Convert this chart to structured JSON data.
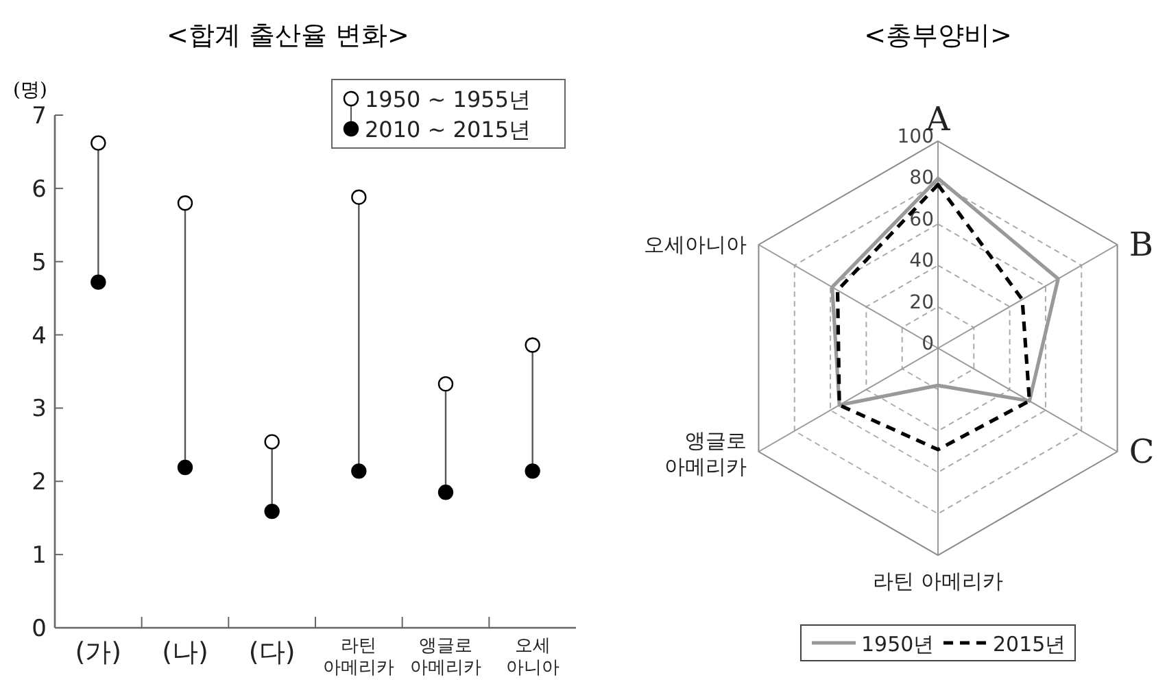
{
  "chart_data": [
    {
      "type": "scatter",
      "title": "<합계 출산율 변화>",
      "ylabel": "(명)",
      "categories": [
        "(가)",
        "(나)",
        "(다)",
        "라틴\n아메리카",
        "앵글로\n아메리카",
        "오세\n아니아"
      ],
      "series": [
        {
          "name": "1950 ~ 1955년",
          "color": "#ffffff",
          "values": [
            6.62,
            5.8,
            2.54,
            5.88,
            3.33,
            3.86
          ]
        },
        {
          "name": "2010 ~ 2015년",
          "color": "#000000",
          "values": [
            4.72,
            2.19,
            1.59,
            2.14,
            1.85,
            2.14
          ]
        }
      ],
      "ylim": [
        0,
        7
      ],
      "yticks": [
        0,
        1,
        2,
        3,
        4,
        5,
        6,
        7
      ],
      "marker": "circle",
      "legend": "top right",
      "grid": false
    },
    {
      "type": "radar",
      "title": "<총부양비>",
      "categories": [
        "A",
        "B",
        "C",
        "라틴 아메리카",
        "앵글로\n아메리카",
        "오세아니아"
      ],
      "series": [
        {
          "name": "1950년",
          "color": "#999999",
          "line_style": "solid",
          "values": [
            82,
            67,
            51,
            18,
            55,
            59
          ]
        },
        {
          "name": "2015년",
          "color": "#000000",
          "line_style": "dashed",
          "values": [
            79,
            47,
            51,
            49,
            55,
            56
          ]
        }
      ],
      "ylim": [
        0,
        100
      ],
      "yticks": [
        0,
        20,
        40,
        60,
        80,
        100
      ],
      "legend": "bottom",
      "grid": true,
      "marker": "none"
    }
  ]
}
